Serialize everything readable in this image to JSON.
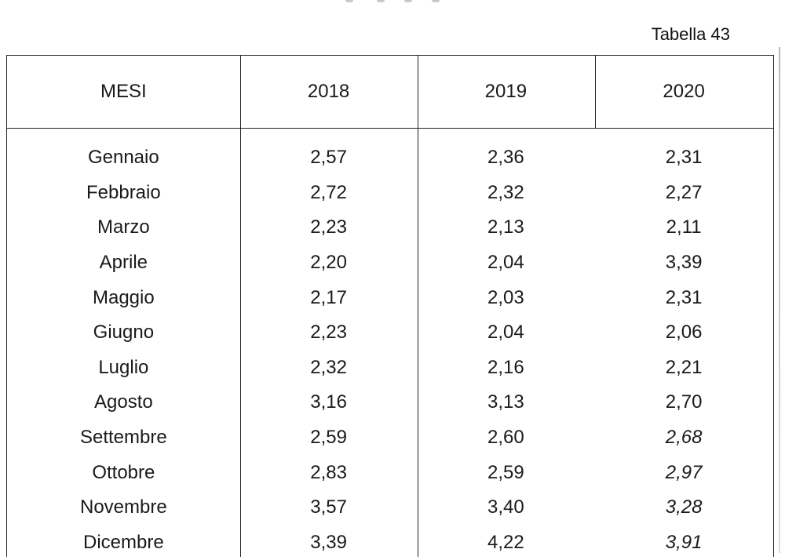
{
  "table_label": "Tabella 43",
  "headers": [
    "MESI",
    "2018",
    "2019",
    "2020"
  ],
  "rows": [
    {
      "month": "Gennaio",
      "v2018": "2,57",
      "v2019": "2,36",
      "v2020": "2,31"
    },
    {
      "month": "Febbraio",
      "v2018": "2,72",
      "v2019": "2,32",
      "v2020": "2,27"
    },
    {
      "month": "Marzo",
      "v2018": "2,23",
      "v2019": "2,13",
      "v2020": "2,11"
    },
    {
      "month": "Aprile",
      "v2018": "2,20",
      "v2019": "2,04",
      "v2020": "3,39"
    },
    {
      "month": "Maggio",
      "v2018": "2,17",
      "v2019": "2,03",
      "v2020": "2,31"
    },
    {
      "month": "Giugno",
      "v2018": "2,23",
      "v2019": "2,04",
      "v2020": "2,06"
    },
    {
      "month": "Luglio",
      "v2018": "2,32",
      "v2019": "2,16",
      "v2020": "2,21"
    },
    {
      "month": "Agosto",
      "v2018": "3,16",
      "v2019": "3,13",
      "v2020": "2,70"
    },
    {
      "month": "Settembre",
      "v2018": "2,59",
      "v2019": "2,60",
      "v2020": "2,68"
    },
    {
      "month": "Ottobre",
      "v2018": "2,83",
      "v2019": "2,59",
      "v2020": "2,97"
    },
    {
      "month": "Novembre",
      "v2018": "3,57",
      "v2019": "3,40",
      "v2020": "3,28"
    },
    {
      "month": "Dicembre",
      "v2018": "3,39",
      "v2019": "4,22",
      "v2020": "3,91"
    }
  ]
}
